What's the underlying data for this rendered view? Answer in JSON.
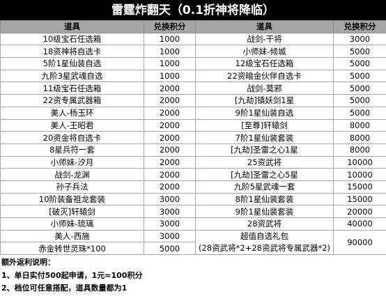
{
  "title": "雷霆炸翻天（0.1折神将降临）",
  "headers": [
    "道具",
    "兑换积分",
    "道具",
    "兑换积分"
  ],
  "rows": [
    {
      "item_left": "10级宝石任选箱",
      "points_left": "1000",
      "item_right": "战剑-干将",
      "points_right": "3000"
    },
    {
      "item_left": "18资神将自选卡",
      "points_left": "1000",
      "item_right": "小师妹-倾城",
      "points_right": "5000"
    },
    {
      "item_left": "5阶1星仙装自选",
      "points_left": "1000",
      "item_right": "12级宝石任选箱",
      "points_right": "5000"
    },
    {
      "item_left": "九阶3星武魂自选",
      "points_left": "1000",
      "item_right": "22资暗金伙伴自选卡",
      "points_right": "5000"
    },
    {
      "item_left": "11级宝石任选箱",
      "points_left": "2000",
      "item_right": "战剑-莫邪",
      "points_right": "5000"
    },
    {
      "item_left": "22资专属武器箱",
      "points_left": "2000",
      "item_right": "[九劫]镇妖剑1星",
      "points_right": "5000"
    },
    {
      "item_left": "美人-杨玉环",
      "points_left": "2000",
      "item_right": "9阶1星仙装自选",
      "points_right": "5000"
    },
    {
      "item_left": "美人-王昭君",
      "points_left": "2000",
      "item_right": "[至尊]轩辕剑",
      "points_right": "8000"
    },
    {
      "item_left": "20资金将自选卡",
      "points_left": "2000",
      "item_right": "7阶1星仙装套装",
      "points_right": "8000"
    },
    {
      "item_left": "8星兵符一套",
      "points_left": "2000",
      "item_right": "[九劫]圣雷之心1星",
      "points_right": "8000"
    },
    {
      "item_left": "小师妹-汐月",
      "points_left": "2000",
      "item_right": "25资武将",
      "points_right": "10000"
    },
    {
      "item_left": "战剑-龙渊",
      "points_left": "2000",
      "item_right": "[九劫]圣雷之心5星",
      "points_right": "10000"
    },
    {
      "item_left": "孙子兵法",
      "points_left": "2000",
      "item_right": "九阶5星武魂一套",
      "points_right": "15000"
    },
    {
      "item_left": "10阶装备祖龙套装",
      "points_left": "3000",
      "item_right": "8阶1星仙装套装",
      "points_right": "15000"
    },
    {
      "item_left": "[破灭]轩辕剑",
      "points_left": "3000",
      "item_right": "9阶1星仙装套装",
      "points_right": "20000"
    },
    {
      "item_left": "小师妹-琉璃",
      "points_left": "3000",
      "item_right": "28资武将",
      "points_right": "40000"
    }
  ],
  "last_rows": {
    "left_a": {
      "item": "美人-西施",
      "points": "3000"
    },
    "left_b": {
      "item": "赤金转世灵珠*100",
      "points": "5000"
    },
    "right_title": "超值自选礼包",
    "right_detail": "(28资武将*2+28资武将专属武器*2)",
    "right_points": "90000"
  },
  "notes": {
    "heading": "额外返利说明：",
    "line1": "1、单日实付500起申请，1元=100积分",
    "line2": "2、档位可任意搭配，道具数量都为1"
  }
}
